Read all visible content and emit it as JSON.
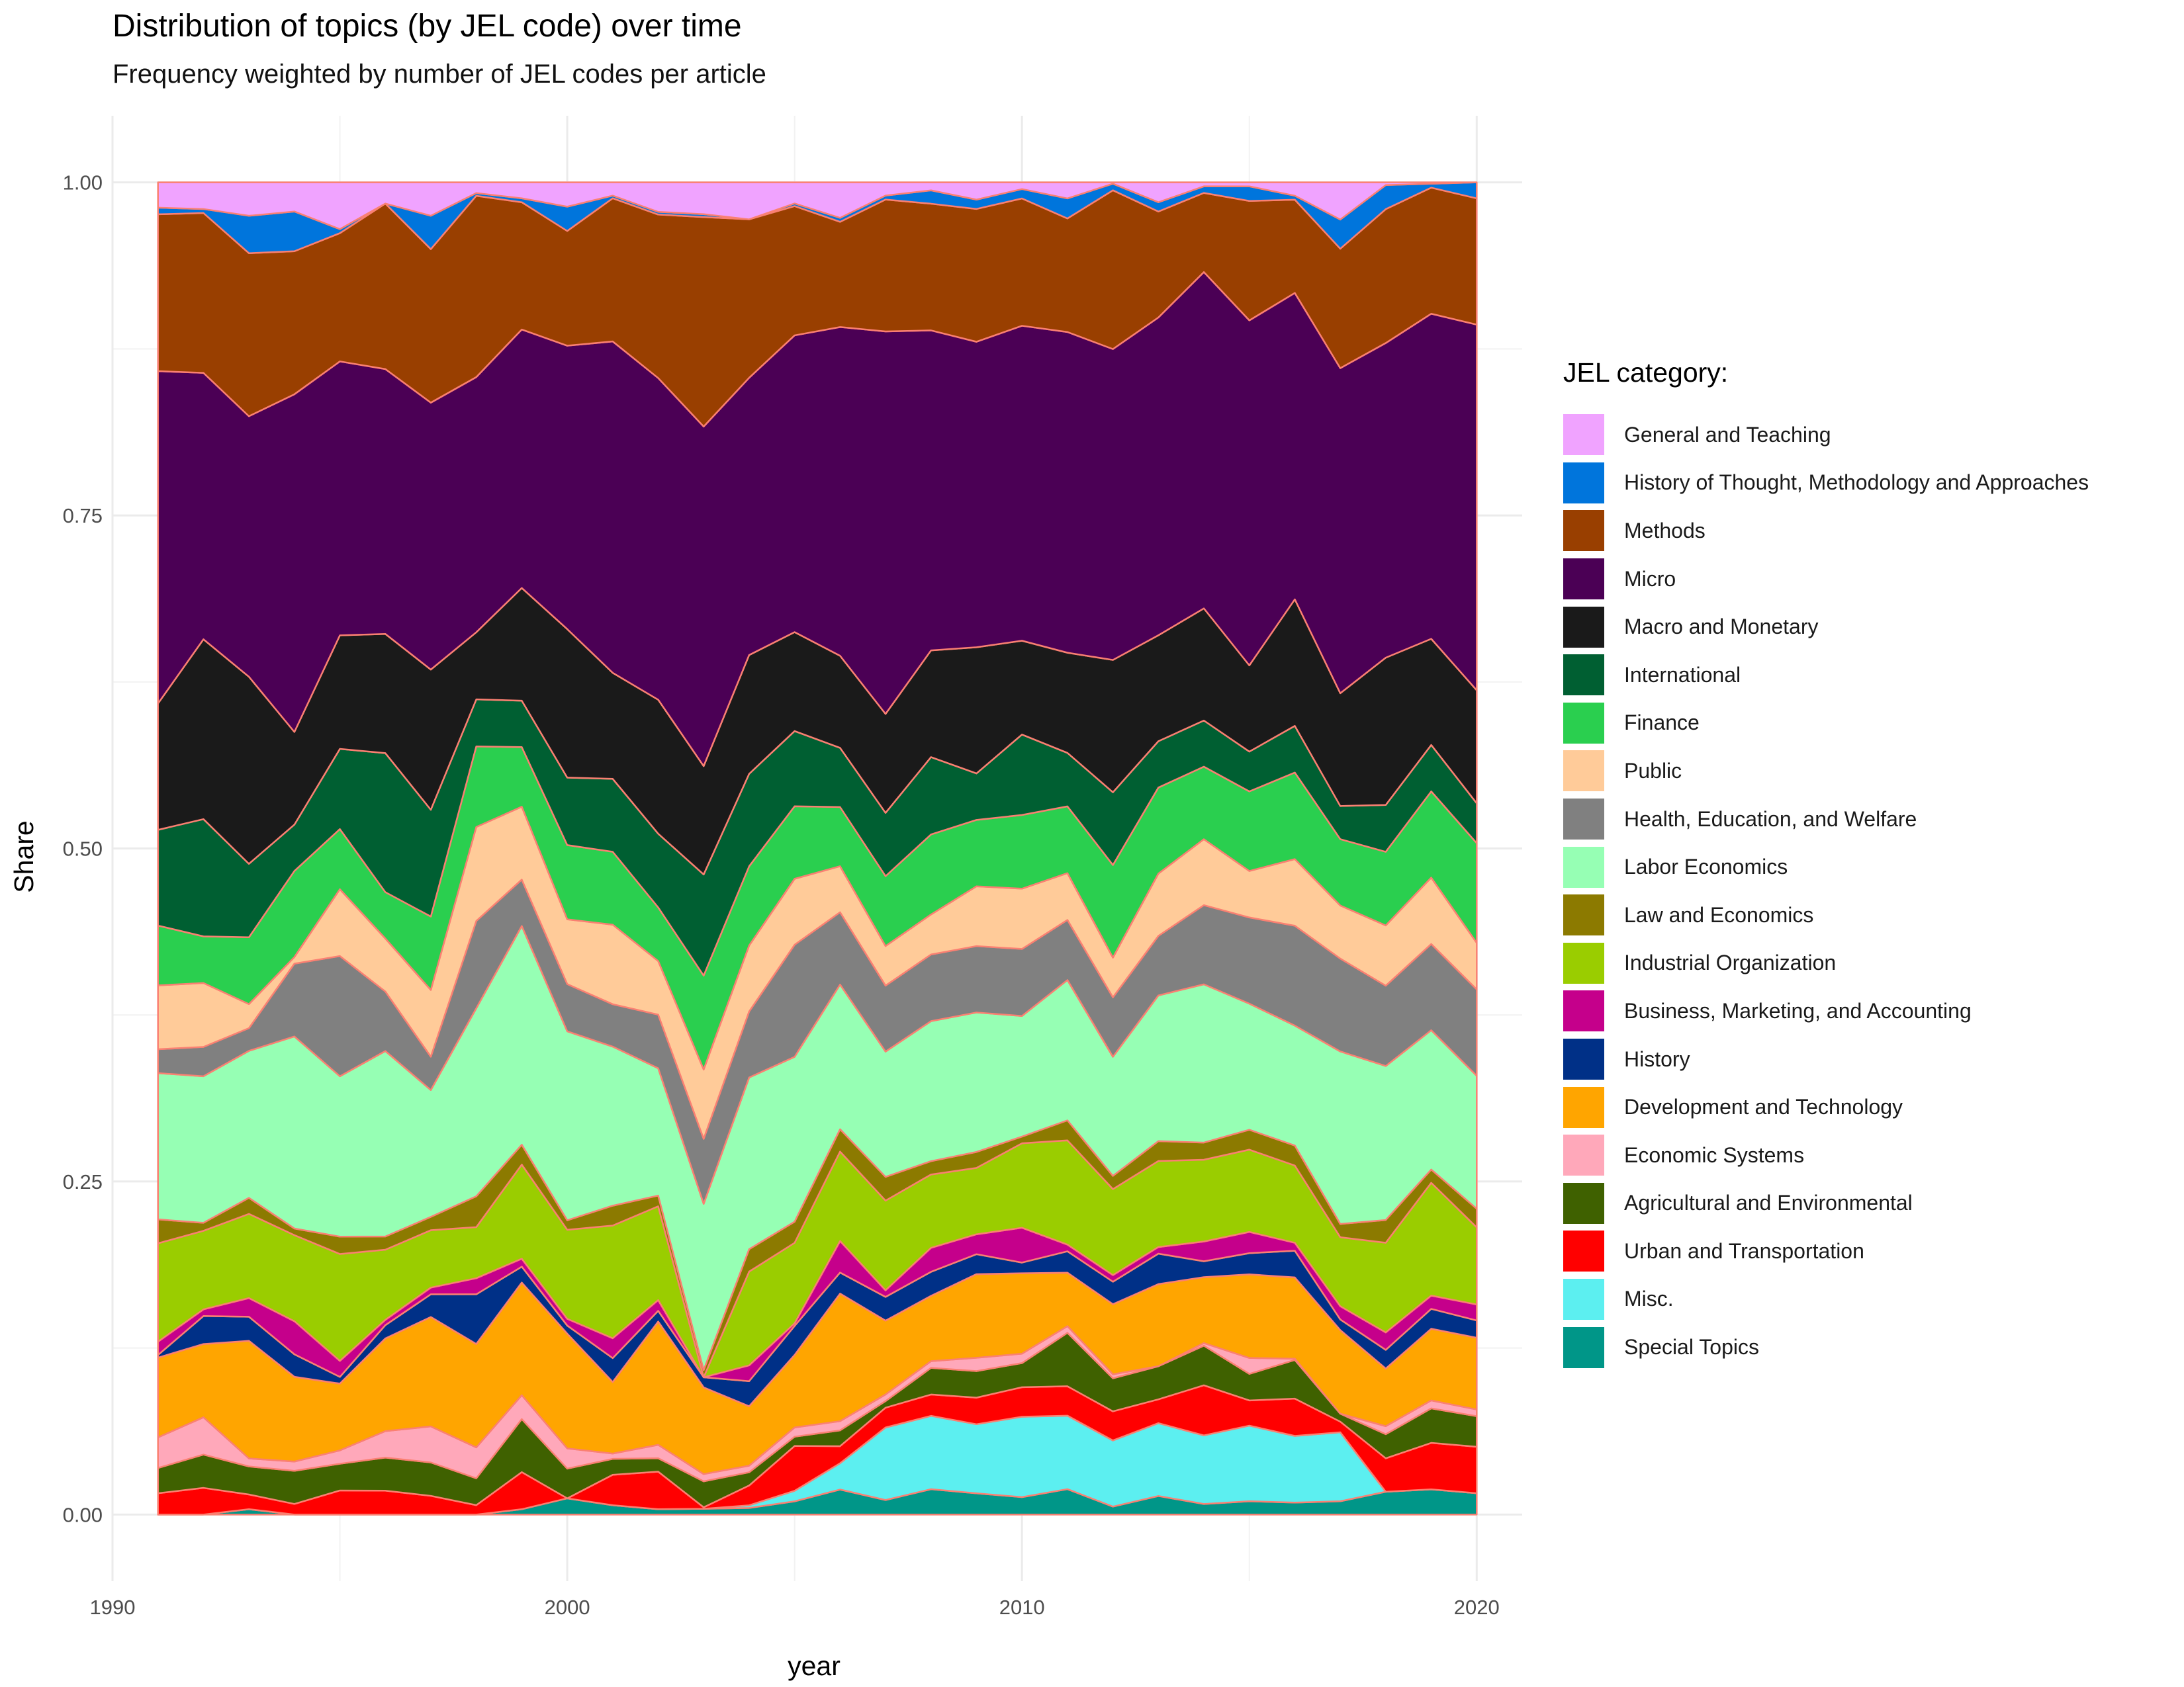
{
  "chart_data": {
    "type": "area",
    "stacked": true,
    "title": "Distribution of topics (by JEL code) over time",
    "subtitle": "Frequency weighted by number of JEL codes per article",
    "xlabel": "year",
    "ylabel": "Share",
    "xlim": [
      1990,
      2021
    ],
    "ylim": [
      0,
      1.0
    ],
    "x_ticks": [
      1990,
      2000,
      2010,
      2020
    ],
    "y_ticks": [
      0.0,
      0.25,
      0.5,
      0.75,
      1.0
    ],
    "y_tick_labels": [
      "0.00",
      "0.25",
      "0.50",
      "0.75",
      "1.00"
    ],
    "grid": true,
    "legend_title": "JEL category:",
    "legend_position": "right",
    "outline_color": "#FA8072",
    "x": [
      1991,
      1992,
      1993,
      1994,
      1995,
      1996,
      1997,
      1998,
      1999,
      2000,
      2001,
      2002,
      2003,
      2004,
      2005,
      2006,
      2007,
      2008,
      2009,
      2010,
      2011,
      2012,
      2013,
      2014,
      2015,
      2016,
      2017,
      2018,
      2019,
      2020
    ],
    "series_order_note": "stacked bottom to top",
    "series": [
      {
        "name": "Special Topics",
        "color": "#009688",
        "values": [
          0.0,
          0.0,
          0.004,
          0.0,
          0.0,
          0.0,
          0.0,
          0.0,
          0.004,
          0.012,
          0.007,
          0.004,
          0.004,
          0.005,
          0.01,
          0.019,
          0.011,
          0.019,
          0.016,
          0.013,
          0.019,
          0.006,
          0.014,
          0.008,
          0.01,
          0.009,
          0.01,
          0.017,
          0.019,
          0.016
        ]
      },
      {
        "name": "Misc.",
        "color": "#5CEFF0",
        "values": [
          0.0,
          0.0,
          0.0,
          0.0,
          0.0,
          0.0,
          0.0,
          0.0,
          0.0,
          0.0,
          0.0,
          0.0,
          0.0,
          0.002,
          0.008,
          0.02,
          0.055,
          0.055,
          0.052,
          0.06,
          0.055,
          0.05,
          0.055,
          0.052,
          0.057,
          0.05,
          0.052,
          0.0,
          0.0,
          0.0
        ]
      },
      {
        "name": "Urban and Transportation",
        "color": "#FF0000",
        "values": [
          0.016,
          0.02,
          0.011,
          0.008,
          0.018,
          0.018,
          0.014,
          0.007,
          0.028,
          0.0,
          0.023,
          0.028,
          0.001,
          0.015,
          0.034,
          0.013,
          0.015,
          0.016,
          0.02,
          0.022,
          0.022,
          0.022,
          0.018,
          0.038,
          0.019,
          0.028,
          0.008,
          0.025,
          0.035,
          0.035
        ]
      },
      {
        "name": "Agricultural and Environmental",
        "color": "#3F6100",
        "values": [
          0.019,
          0.025,
          0.021,
          0.025,
          0.02,
          0.025,
          0.025,
          0.02,
          0.04,
          0.022,
          0.012,
          0.01,
          0.018,
          0.01,
          0.007,
          0.012,
          0.005,
          0.02,
          0.02,
          0.018,
          0.04,
          0.025,
          0.025,
          0.03,
          0.02,
          0.029,
          0.006,
          0.018,
          0.026,
          0.023
        ]
      },
      {
        "name": "Economic Systems",
        "color": "#FFA8BA",
        "values": [
          0.023,
          0.028,
          0.006,
          0.007,
          0.01,
          0.02,
          0.027,
          0.023,
          0.018,
          0.015,
          0.004,
          0.01,
          0.005,
          0.005,
          0.007,
          0.007,
          0.005,
          0.005,
          0.01,
          0.007,
          0.005,
          0.003,
          0.0,
          0.002,
          0.012,
          0.001,
          0.0,
          0.006,
          0.006,
          0.005
        ]
      },
      {
        "name": "Development and Technology",
        "color": "#FFA500",
        "values": [
          0.06,
          0.055,
          0.088,
          0.064,
          0.05,
          0.07,
          0.082,
          0.077,
          0.085,
          0.085,
          0.054,
          0.092,
          0.06,
          0.045,
          0.055,
          0.097,
          0.056,
          0.049,
          0.063,
          0.06,
          0.04,
          0.053,
          0.062,
          0.05,
          0.063,
          0.061,
          0.063,
          0.043,
          0.054,
          0.054
        ]
      },
      {
        "name": "History",
        "color": "#003087",
        "values": [
          0.002,
          0.021,
          0.018,
          0.017,
          0.005,
          0.01,
          0.017,
          0.037,
          0.012,
          0.006,
          0.018,
          0.008,
          0.007,
          0.019,
          0.022,
          0.016,
          0.018,
          0.018,
          0.015,
          0.008,
          0.016,
          0.017,
          0.023,
          0.012,
          0.016,
          0.02,
          0.008,
          0.014,
          0.015,
          0.013
        ]
      },
      {
        "name": "Business, Marketing, and Accounting",
        "color": "#C5008B",
        "values": [
          0.01,
          0.005,
          0.014,
          0.025,
          0.012,
          0.004,
          0.005,
          0.012,
          0.006,
          0.005,
          0.015,
          0.008,
          0.0,
          0.012,
          0.002,
          0.024,
          0.005,
          0.018,
          0.015,
          0.026,
          0.005,
          0.005,
          0.005,
          0.015,
          0.016,
          0.006,
          0.01,
          0.013,
          0.01,
          0.012
        ]
      },
      {
        "name": "Industrial Organization",
        "color": "#9ACD00",
        "values": [
          0.074,
          0.059,
          0.063,
          0.065,
          0.08,
          0.053,
          0.043,
          0.038,
          0.071,
          0.066,
          0.085,
          0.07,
          0.0,
          0.071,
          0.061,
          0.068,
          0.068,
          0.055,
          0.05,
          0.063,
          0.078,
          0.065,
          0.065,
          0.062,
          0.062,
          0.058,
          0.052,
          0.067,
          0.085,
          0.058
        ]
      },
      {
        "name": "Law and Economics",
        "color": "#8C7A00",
        "values": [
          0.018,
          0.006,
          0.012,
          0.005,
          0.013,
          0.01,
          0.01,
          0.023,
          0.015,
          0.007,
          0.015,
          0.008,
          0.005,
          0.017,
          0.016,
          0.017,
          0.018,
          0.01,
          0.012,
          0.005,
          0.015,
          0.01,
          0.015,
          0.013,
          0.015,
          0.015,
          0.01,
          0.017,
          0.01,
          0.014
        ]
      },
      {
        "name": "Labor Economics",
        "color": "#96FFB4",
        "values": [
          0.11,
          0.11,
          0.11,
          0.145,
          0.12,
          0.14,
          0.095,
          0.14,
          0.165,
          0.14,
          0.12,
          0.095,
          0.115,
          0.13,
          0.125,
          0.11,
          0.095,
          0.105,
          0.105,
          0.09,
          0.105,
          0.09,
          0.11,
          0.12,
          0.095,
          0.09,
          0.13,
          0.115,
          0.105,
          0.1
        ]
      },
      {
        "name": "Health, Education, and Welfare",
        "color": "#808080",
        "values": [
          0.018,
          0.022,
          0.017,
          0.055,
          0.09,
          0.045,
          0.025,
          0.065,
          0.035,
          0.035,
          0.032,
          0.04,
          0.045,
          0.05,
          0.085,
          0.055,
          0.05,
          0.05,
          0.05,
          0.05,
          0.045,
          0.045,
          0.045,
          0.06,
          0.065,
          0.075,
          0.07,
          0.06,
          0.065,
          0.065
        ]
      },
      {
        "name": "Public",
        "color": "#FFCB99",
        "values": [
          0.048,
          0.048,
          0.018,
          0.005,
          0.05,
          0.04,
          0.05,
          0.07,
          0.055,
          0.048,
          0.06,
          0.04,
          0.048,
          0.05,
          0.05,
          0.035,
          0.03,
          0.03,
          0.045,
          0.045,
          0.035,
          0.03,
          0.047,
          0.05,
          0.035,
          0.05,
          0.04,
          0.045,
          0.05,
          0.035
        ]
      },
      {
        "name": "Finance",
        "color": "#2ACF4F",
        "values": [
          0.045,
          0.035,
          0.05,
          0.065,
          0.045,
          0.035,
          0.055,
          0.06,
          0.045,
          0.055,
          0.055,
          0.04,
          0.065,
          0.06,
          0.055,
          0.045,
          0.053,
          0.06,
          0.05,
          0.055,
          0.05,
          0.07,
          0.065,
          0.055,
          0.06,
          0.065,
          0.05,
          0.055,
          0.065,
          0.075
        ]
      },
      {
        "name": "International",
        "color": "#005F32",
        "values": [
          0.072,
          0.088,
          0.055,
          0.035,
          0.06,
          0.105,
          0.08,
          0.035,
          0.035,
          0.05,
          0.055,
          0.055,
          0.07,
          0.07,
          0.057,
          0.045,
          0.048,
          0.058,
          0.035,
          0.06,
          0.04,
          0.055,
          0.035,
          0.035,
          0.03,
          0.035,
          0.025,
          0.035,
          0.035,
          0.03
        ]
      },
      {
        "name": "Macro and Monetary",
        "color": "#1A1A1A",
        "values": [
          0.095,
          0.135,
          0.14,
          0.07,
          0.085,
          0.09,
          0.105,
          0.05,
          0.085,
          0.11,
          0.08,
          0.1,
          0.075,
          0.09,
          0.075,
          0.07,
          0.075,
          0.08,
          0.095,
          0.07,
          0.075,
          0.1,
          0.08,
          0.085,
          0.065,
          0.095,
          0.085,
          0.11,
          0.08,
          0.085
        ]
      },
      {
        "name": "Micro",
        "color": "#4B0055",
        "values": [
          0.25,
          0.2,
          0.195,
          0.255,
          0.205,
          0.2,
          0.2,
          0.19,
          0.195,
          0.21,
          0.25,
          0.24,
          0.235,
          0.21,
          0.225,
          0.25,
          0.29,
          0.24,
          0.23,
          0.235,
          0.24,
          0.235,
          0.24,
          0.255,
          0.26,
          0.23,
          0.245,
          0.235,
          0.245,
          0.275
        ]
      },
      {
        "name": "Methods",
        "color": "#993F00",
        "values": [
          0.118,
          0.12,
          0.122,
          0.108,
          0.096,
          0.125,
          0.115,
          0.135,
          0.096,
          0.085,
          0.108,
          0.122,
          0.145,
          0.12,
          0.098,
          0.08,
          0.1,
          0.095,
          0.1,
          0.095,
          0.085,
          0.12,
          0.08,
          0.06,
          0.09,
          0.07,
          0.09,
          0.1,
          0.095,
          0.095
        ]
      },
      {
        "name": "History of Thought, Methodology and Approaches",
        "color": "#0075DC",
        "values": [
          0.005,
          0.003,
          0.028,
          0.03,
          0.003,
          0.0,
          0.025,
          0.002,
          0.003,
          0.018,
          0.002,
          0.002,
          0.002,
          0.0,
          0.002,
          0.003,
          0.003,
          0.01,
          0.007,
          0.007,
          0.015,
          0.005,
          0.007,
          0.005,
          0.011,
          0.003,
          0.022,
          0.018,
          0.003,
          0.012
        ]
      },
      {
        "name": "General and Teaching",
        "color": "#F0A3FF",
        "values": [
          0.019,
          0.02,
          0.025,
          0.022,
          0.035,
          0.016,
          0.025,
          0.008,
          0.012,
          0.018,
          0.01,
          0.022,
          0.022,
          0.028,
          0.016,
          0.027,
          0.01,
          0.006,
          0.013,
          0.005,
          0.012,
          0.001,
          0.015,
          0.003,
          0.003,
          0.01,
          0.028,
          0.002,
          0.001,
          0.0
        ]
      }
    ]
  }
}
